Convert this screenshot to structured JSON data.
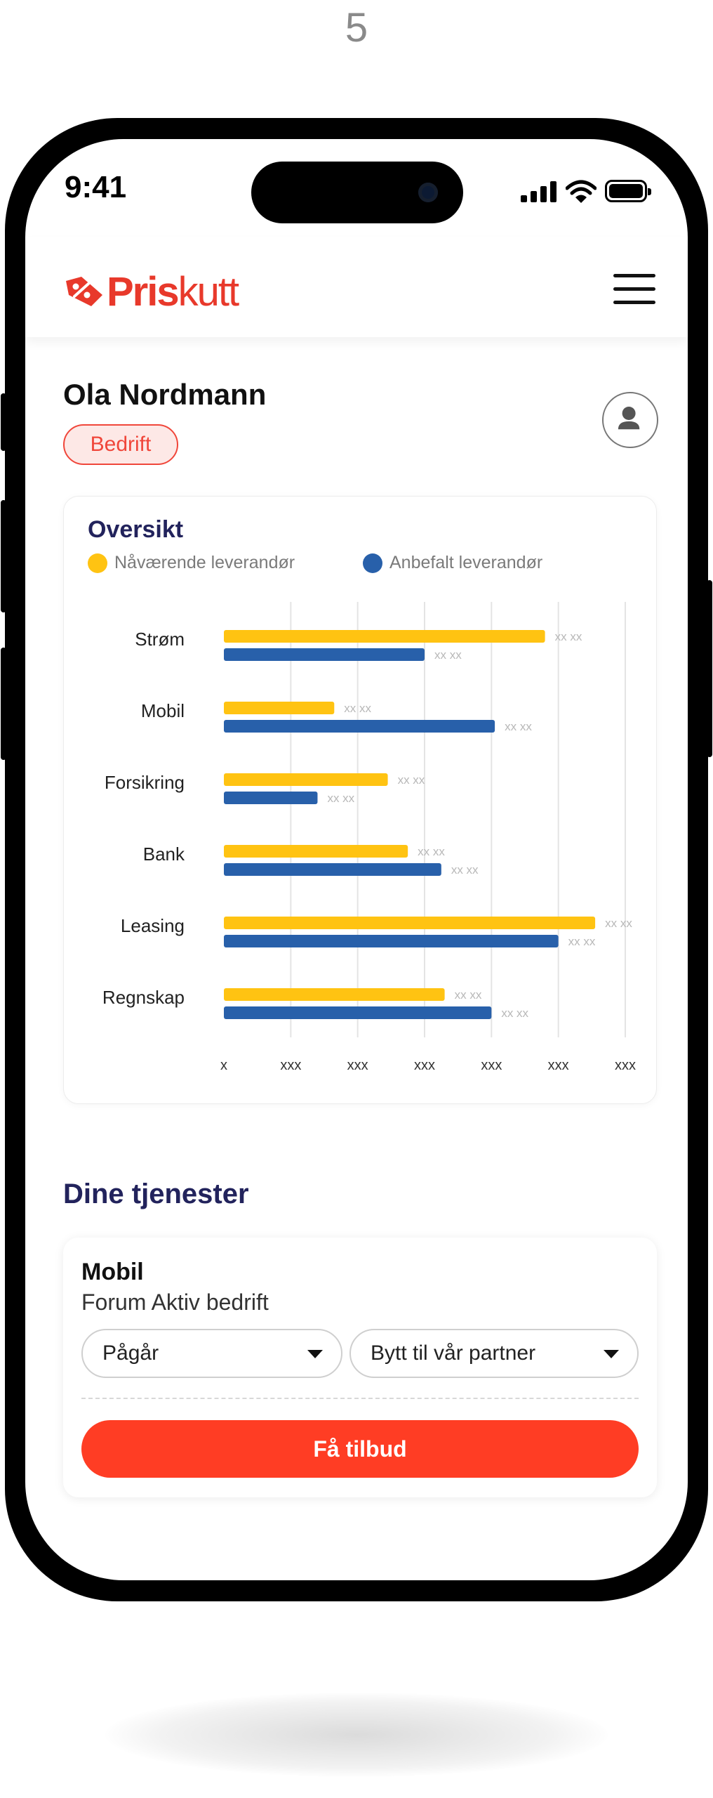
{
  "page_number": "5",
  "status_bar": {
    "time": "9:41"
  },
  "header": {
    "logo_text_bold": "Pris",
    "logo_text_regular": "kutt"
  },
  "user": {
    "name": "Ola Nordmann",
    "type_badge": "Bedrift"
  },
  "overview": {
    "title": "Oversikt",
    "legend": [
      {
        "label": "Nåværende leverandør",
        "color": "#FFC312"
      },
      {
        "label": "Anbefalt leverandør",
        "color": "#2860AA"
      }
    ]
  },
  "chart_data": {
    "type": "bar",
    "orientation": "horizontal",
    "categories": [
      "Strøm",
      "Mobil",
      "Forsikring",
      "Bank",
      "Leasing",
      "Regnskap"
    ],
    "series": [
      {
        "name": "Nåværende leverandør",
        "color": "#FFC312",
        "values": [
          4.8,
          1.65,
          2.45,
          2.75,
          5.55,
          3.3
        ],
        "data_labels": [
          "xx xx",
          "xx xx",
          "xx xx",
          "xx xx",
          "xx xx",
          "xx xx"
        ]
      },
      {
        "name": "Anbefalt leverandør",
        "color": "#2860AA",
        "values": [
          3.0,
          4.05,
          1.4,
          3.25,
          5.0,
          4.0
        ],
        "data_labels": [
          "xx xx",
          "xx xx",
          "xx xx",
          "xx xx",
          "xx xx",
          "xx xx"
        ]
      }
    ],
    "x_tick_labels": [
      "x",
      "xxx",
      "xxx",
      "xxx",
      "xxx",
      "xxx",
      "xxx"
    ],
    "xlim": [
      0,
      6
    ],
    "grid": true,
    "legend_position": "top-left"
  },
  "services": {
    "title": "Dine tjenester",
    "items": [
      {
        "name": "Mobil",
        "provider": "Forum Aktiv bedrift",
        "status_select": "Pågår",
        "action_select": "Bytt til vår partner",
        "cta_label": "Få tilbud"
      }
    ]
  }
}
